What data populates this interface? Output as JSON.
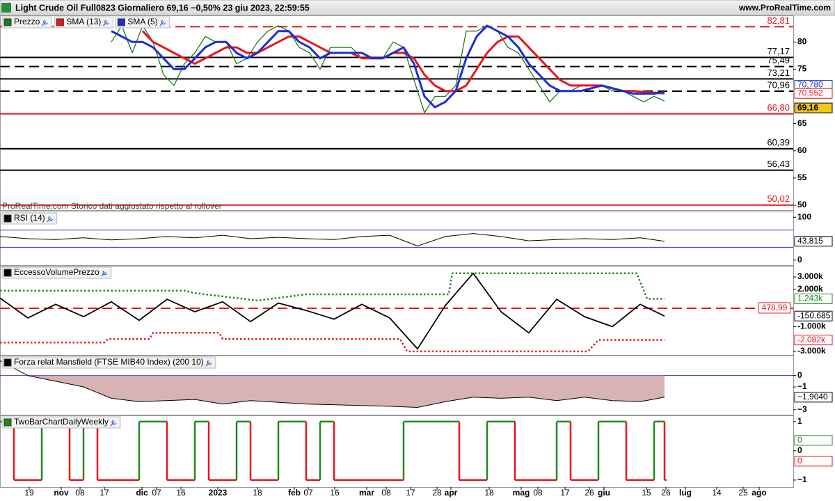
{
  "header": {
    "title": "Light Crude Oil Full0823 Giornaliero 69,16 −0,50% 23 giu 2023, 22:59:55",
    "site": "www.ProRealTime.com"
  },
  "chart_data": [
    {
      "type": "line",
      "note": "ProRealTime.com  Storico dati aggiustato rispetto al rollover",
      "xlim": [
        0,
        228
      ],
      "ylim": [
        49.1,
        84.9
      ],
      "yticks": [
        80,
        75,
        65,
        60,
        55,
        50
      ],
      "x": [
        32,
        35,
        38,
        41,
        44,
        47,
        50,
        53,
        56,
        59,
        62,
        65,
        68,
        71,
        74,
        77,
        80,
        83,
        86,
        89,
        92,
        95,
        98,
        101,
        104,
        107,
        110,
        113,
        116,
        119,
        122,
        125,
        128,
        131,
        134,
        137,
        140,
        143,
        146,
        149,
        152,
        155,
        158,
        161,
        164,
        167,
        170,
        173,
        176,
        179,
        182,
        185,
        188,
        191
      ],
      "series": [
        {
          "name": "Prezzo",
          "color": "#1e7a1e",
          "width": 1.3,
          "values": [
            80,
            83,
            78,
            83,
            80,
            74,
            72,
            76,
            78,
            81,
            80,
            80,
            76,
            77,
            80,
            82,
            83,
            82,
            79,
            78,
            75,
            79,
            79,
            79,
            77,
            77,
            77,
            80,
            79,
            73,
            67,
            70,
            70,
            72,
            82,
            82,
            83,
            82,
            79,
            78,
            75,
            72,
            69,
            71,
            71,
            72,
            72,
            72,
            71,
            71,
            70,
            69,
            70,
            69.16
          ]
        },
        {
          "name": "SMA (13)",
          "color": "#e8141e",
          "width": 3,
          "values": [
            null,
            null,
            null,
            82,
            80,
            79,
            78,
            77,
            76,
            77,
            78,
            79,
            79,
            78,
            78,
            79,
            80,
            81,
            81,
            80,
            79,
            78,
            78,
            78,
            77,
            77,
            77,
            78,
            78,
            77,
            74,
            72,
            71,
            71,
            72,
            75,
            78,
            80,
            81,
            81,
            79,
            77,
            75,
            73,
            72,
            72,
            72,
            72,
            71.5,
            71,
            71,
            70.8,
            70.7,
            70.552
          ]
        },
        {
          "name": "SMA (5)",
          "color": "#1a2fd6",
          "width": 3,
          "values": [
            82,
            81,
            80,
            80,
            79,
            77,
            75,
            75,
            77,
            79,
            80,
            80,
            78,
            77,
            78,
            80,
            82,
            82,
            80,
            79,
            77,
            78,
            78,
            78,
            78,
            77,
            77,
            78,
            79,
            76,
            70,
            68,
            69,
            71,
            77,
            81,
            83,
            82,
            81,
            79,
            76,
            74,
            72,
            71,
            71,
            71,
            71.5,
            72,
            71.5,
            71,
            70.5,
            70.5,
            70.5,
            70.78
          ]
        }
      ],
      "levels": [
        {
          "value": 82.81,
          "label": "82,81",
          "color": "#e8141e",
          "style": "dashed"
        },
        {
          "value": 77.17,
          "label": "77,17",
          "color": "#000000",
          "style": "solid"
        },
        {
          "value": 75.49,
          "label": "75,49",
          "color": "#000000",
          "style": "dashed"
        },
        {
          "value": 73.21,
          "label": "73,21",
          "color": "#000000",
          "style": "solid"
        },
        {
          "value": 70.96,
          "label": "70,96",
          "color": "#000000",
          "style": "dashed"
        },
        {
          "value": 66.8,
          "label": "66,80",
          "color": "#e8141e",
          "style": "solid"
        },
        {
          "value": 60.39,
          "label": "60,39",
          "color": "#000000",
          "style": "solid"
        },
        {
          "value": 56.43,
          "label": "56,43",
          "color": "#000000",
          "style": "solid"
        },
        {
          "value": 50.02,
          "label": "50,02",
          "color": "#e8141e",
          "style": "solid"
        }
      ],
      "tags": [
        {
          "value": 70.78,
          "label": "70,780",
          "color": "#1a2fd6"
        },
        {
          "value": 70.552,
          "label": "70,552",
          "color": "#e8141e"
        },
        {
          "value": 69.16,
          "label": "69,16",
          "color": "#000000",
          "background": "#f5c518"
        }
      ]
    },
    {
      "type": "line",
      "xlim": [
        0,
        228
      ],
      "ylim": [
        -11.7,
        113.3
      ],
      "yticks": [
        100,
        0
      ],
      "x": [
        0,
        8,
        16,
        24,
        32,
        40,
        48,
        56,
        64,
        72,
        80,
        88,
        96,
        104,
        112,
        120,
        128,
        136,
        144,
        152,
        160,
        168,
        176,
        184,
        191
      ],
      "series": [
        {
          "name": "RSI (14)",
          "color": "#000000",
          "width": 1,
          "values": [
            55,
            50,
            48,
            52,
            47,
            50,
            55,
            52,
            58,
            50,
            53,
            50,
            48,
            55,
            58,
            33,
            55,
            62,
            55,
            45,
            48,
            50,
            48,
            52,
            43.815
          ]
        }
      ],
      "levels": [
        {
          "value": 70,
          "color": "#1a2fd6",
          "style": "solid"
        },
        {
          "value": 30,
          "color": "#1a2fd6",
          "style": "solid"
        }
      ],
      "tags": [
        {
          "value": 43.815,
          "label": "43,815",
          "color": "#000000"
        }
      ]
    },
    {
      "type": "line",
      "xlim": [
        0,
        228
      ],
      "ylim": [
        -3280,
        3900
      ],
      "yticks": [
        {
          "value": 3000,
          "label": "3.000k"
        },
        {
          "value": 2000,
          "label": "2.000k"
        },
        {
          "value": -1000,
          "label": "-1.000k"
        },
        {
          "value": -3000,
          "label": "-3.000k"
        }
      ],
      "x": [
        0,
        8,
        16,
        24,
        32,
        40,
        48,
        56,
        64,
        72,
        80,
        88,
        96,
        104,
        112,
        120,
        128,
        136,
        144,
        152,
        160,
        168,
        176,
        184,
        191
      ],
      "series": [
        {
          "name": "EccessoVolumePrezzo",
          "color": "#000000",
          "width": 1.8,
          "values": [
            1300,
            -300,
            800,
            -200,
            1000,
            -500,
            1200,
            200,
            1000,
            -600,
            900,
            300,
            -400,
            800,
            -300,
            -2800,
            700,
            3300,
            200,
            -1500,
            1200,
            -200,
            -1000,
            800,
            -150.685
          ]
        },
        {
          "color": "#1e8a1e",
          "width": 2.5,
          "style": "dotted",
          "x": [
            0,
            53,
            56,
            74,
            88,
            129,
            130,
            183,
            186,
            191
          ],
          "values": [
            1900,
            1900,
            1700,
            1100,
            1600,
            1600,
            3300,
            3300,
            1243,
            1243
          ]
        },
        {
          "color": "#e8141e",
          "width": 2.5,
          "style": "dotted",
          "x": [
            0,
            30,
            31,
            43,
            44,
            63,
            64,
            115,
            117,
            169,
            172,
            191
          ],
          "values": [
            -2280,
            -2280,
            -2000,
            -2000,
            -1500,
            -1500,
            -2000,
            -2000,
            -3000,
            -3000,
            -2082,
            -2082
          ]
        }
      ],
      "levels": [
        {
          "value": 478.99,
          "label": "478,99",
          "color": "#e8141e",
          "style": "dashed",
          "boxed": true
        }
      ],
      "tags": [
        {
          "value": 1243,
          "label": "1.243k",
          "color": "#1e8a1e"
        },
        {
          "value": -150.685,
          "label": "-150.685",
          "color": "#000000"
        },
        {
          "value": -2082,
          "label": "-2.082k",
          "color": "#e8141e"
        }
      ]
    },
    {
      "type": "area",
      "xlim": [
        0,
        228
      ],
      "ylim": [
        -3.44,
        1.75
      ],
      "yticks": [
        0,
        {
          "value": -1,
          "label": "−1"
        },
        {
          "value": -3,
          "label": "−3"
        }
      ],
      "x": [
        0,
        8,
        24,
        32,
        40,
        56,
        64,
        72,
        88,
        112,
        120,
        128,
        136,
        144,
        152,
        160,
        168,
        176,
        184,
        191
      ],
      "series": [
        {
          "name": "Forza relat Mansfield (FTSE MIB40 Index) (200 10)",
          "color": "#000000",
          "fill": "#c99a9a",
          "width": 1,
          "values": [
            1.3,
            0,
            -1,
            -2,
            -2.3,
            -2.1,
            -2.5,
            -2.2,
            -2.5,
            -2.7,
            -2.8,
            -2.3,
            -1.9,
            -2,
            -1.9,
            -2.2,
            -1.9,
            -2.2,
            -2.3,
            -1.904
          ]
        }
      ],
      "levels": [
        {
          "value": 0,
          "color": "#1a2fd6",
          "style": "solid"
        }
      ],
      "tags": [
        {
          "value": -1.904,
          "label": "−1,9040",
          "color": "#000000"
        }
      ]
    },
    {
      "type": "step",
      "xlim": [
        0,
        228
      ],
      "ylim": [
        -1.24,
        1.21
      ],
      "yticks": [
        1,
        0,
        {
          "value": -1,
          "label": "−1"
        }
      ],
      "x": [
        0,
        4,
        8,
        12,
        16,
        20,
        24,
        28,
        32,
        36,
        40,
        44,
        48,
        52,
        56,
        60,
        64,
        68,
        72,
        76,
        80,
        84,
        88,
        92,
        96,
        100,
        104,
        108,
        112,
        116,
        120,
        124,
        128,
        132,
        136,
        140,
        144,
        148,
        152,
        156,
        160,
        164,
        168,
        172,
        176,
        180,
        184,
        188,
        191
      ],
      "series": [
        {
          "name": "TwoBarChartDailyWeekly",
          "color": "#1e8a1e",
          "down_color": "#e8141e",
          "width": 2.5,
          "values": [
            1,
            -1,
            -1,
            1,
            1,
            -1,
            1,
            -1,
            -1,
            -1,
            1,
            1,
            -1,
            -1,
            1,
            -1,
            -1,
            1,
            -1,
            -1,
            1,
            1,
            -1,
            1,
            -1,
            -1,
            -1,
            -1,
            -1,
            1,
            1,
            1,
            1,
            -1,
            -1,
            1,
            1,
            -1,
            -1,
            -1,
            1,
            -1,
            -1,
            1,
            1,
            -1,
            -1,
            1,
            -1
          ]
        }
      ],
      "tags": [
        {
          "value": 0,
          "label": "0",
          "color": "#1e8a1e"
        },
        {
          "value": 0,
          "label": "0",
          "color": "#e8141e"
        }
      ],
      "xticks": [
        {
          "value": 8.4,
          "label": "19"
        },
        {
          "value": 17.6,
          "label": "nov"
        },
        {
          "value": 23,
          "label": "08"
        },
        {
          "value": 30,
          "label": "17"
        },
        {
          "value": 40.8,
          "label": "dic"
        },
        {
          "value": 45,
          "label": "07"
        },
        {
          "value": 52,
          "label": "16"
        },
        {
          "value": 62.6,
          "label": "2023"
        },
        {
          "value": 74,
          "label": "18"
        },
        {
          "value": 84.6,
          "label": "feb"
        },
        {
          "value": 88.6,
          "label": "07"
        },
        {
          "value": 96.2,
          "label": "16"
        },
        {
          "value": 105.4,
          "label": "mar"
        },
        {
          "value": 111,
          "label": "08"
        },
        {
          "value": 118,
          "label": "17"
        },
        {
          "value": 125.6,
          "label": "28"
        },
        {
          "value": 129.6,
          "label": "apr"
        },
        {
          "value": 140.6,
          "label": "18"
        },
        {
          "value": 149.8,
          "label": "mag"
        },
        {
          "value": 154.6,
          "label": "08"
        },
        {
          "value": 162.4,
          "label": "17"
        },
        {
          "value": 169.4,
          "label": "26"
        },
        {
          "value": 173.6,
          "label": "giu"
        },
        {
          "value": 185.8,
          "label": "15"
        },
        {
          "value": 191.4,
          "label": "26"
        },
        {
          "value": 197,
          "label": "lug"
        },
        {
          "value": 206,
          "label": "14"
        },
        {
          "value": 213.6,
          "label": "25"
        },
        {
          "value": 218.2,
          "label": "ago"
        }
      ]
    }
  ]
}
